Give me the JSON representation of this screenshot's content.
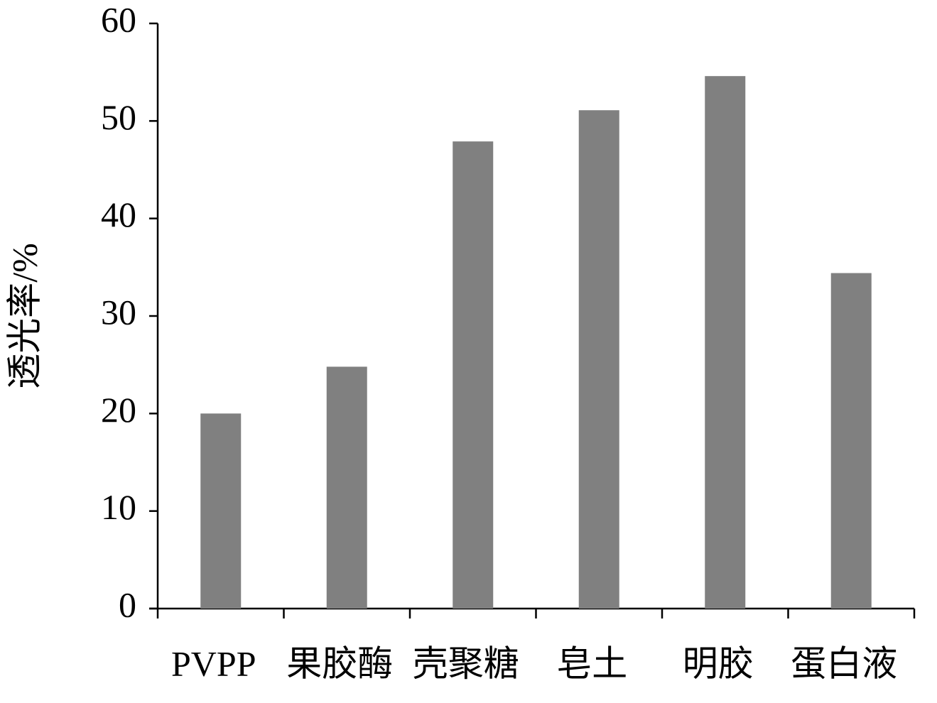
{
  "chart_data": {
    "type": "bar",
    "y_label": "透光率/%",
    "categories": [
      "PVPP",
      "果胶酶",
      "壳聚糖",
      "皂土",
      "明胶",
      "蛋白液"
    ],
    "values": [
      20.0,
      24.8,
      47.9,
      51.1,
      54.6,
      34.4
    ],
    "color": "#808080",
    "ylim": [
      0,
      60
    ],
    "yticks": [
      0,
      10,
      20,
      30,
      40,
      50,
      60
    ],
    "grid": false
  }
}
